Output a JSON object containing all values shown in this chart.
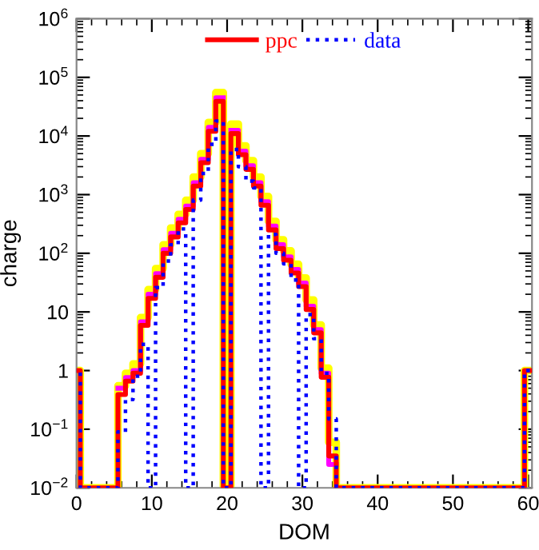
{
  "chart_data": {
    "type": "step",
    "xlabel": "DOM",
    "ylabel": "charge",
    "x": [
      0,
      1,
      2,
      3,
      4,
      5,
      6,
      7,
      8,
      9,
      10,
      11,
      12,
      13,
      14,
      15,
      16,
      17,
      18,
      19,
      20,
      21,
      22,
      23,
      24,
      25,
      26,
      27,
      28,
      29,
      30,
      31,
      32,
      33,
      34,
      35,
      36,
      37,
      38,
      39,
      40,
      41,
      42,
      43,
      44,
      45,
      46,
      47,
      48,
      49,
      50,
      51,
      52,
      53,
      54,
      55,
      56,
      57,
      58,
      59,
      60
    ],
    "series": [
      {
        "color": "#ffff00",
        "line_style": "solid",
        "values": [
          1,
          0.01,
          0.01,
          0.01,
          0.01,
          0.01,
          0.55,
          0.9,
          1.3,
          8,
          24,
          55,
          140,
          270,
          460,
          800,
          2000,
          5000,
          17000,
          55000,
          0.01,
          16000,
          6800,
          3800,
          2000,
          930,
          350,
          170,
          110,
          65,
          38,
          16,
          6,
          1.1,
          0.06,
          0.01,
          0.01,
          0.01,
          0.01,
          0.01,
          0.01,
          0.01,
          0.01,
          0.01,
          0.01,
          0.01,
          0.01,
          0.01,
          0.01,
          0.01,
          0.01,
          0.01,
          0.01,
          0.01,
          0.01,
          0.01,
          0.01,
          0.01,
          0.01,
          0.01,
          1
        ]
      },
      {
        "color": "#ff00ff",
        "line_style": "solid",
        "x": [
          6,
          7,
          8,
          9,
          10,
          11,
          12,
          13,
          14,
          15,
          16,
          17,
          18,
          19,
          20,
          21,
          22,
          23,
          24,
          25,
          26,
          27,
          28,
          29,
          30,
          31,
          32,
          33,
          34
        ],
        "values": [
          0.5,
          0.76,
          1.0,
          6.8,
          20,
          45,
          115,
          220,
          380,
          640,
          1600,
          4000,
          14000,
          45000,
          null,
          12500,
          5500,
          3100,
          1600,
          760,
          290,
          140,
          87,
          53,
          31,
          12.5,
          5,
          0.9,
          0.025
        ]
      },
      {
        "name": "ppc",
        "color": "#ff0000",
        "line_style": "solid",
        "values": [
          1,
          0.01,
          0.01,
          0.01,
          0.01,
          0.01,
          0.39,
          0.66,
          0.9,
          5.9,
          17,
          39,
          100,
          190,
          330,
          560,
          1400,
          3500,
          12000,
          39000,
          0.01,
          11000,
          4800,
          2700,
          1400,
          660,
          250,
          120,
          76,
          46,
          27,
          11,
          4.4,
          0.77,
          0.035,
          0.01,
          0.01,
          0.01,
          0.01,
          0.01,
          0.01,
          0.01,
          0.01,
          0.01,
          0.01,
          0.01,
          0.01,
          0.01,
          0.01,
          0.01,
          0.01,
          0.01,
          0.01,
          0.01,
          0.01,
          0.01,
          0.01,
          0.01,
          0.01,
          0.01,
          1
        ]
      },
      {
        "name": "data",
        "color": "#0000ff",
        "line_style": "dotted",
        "values": [
          1,
          0.01,
          0.01,
          0.01,
          0.01,
          0.01,
          0.09,
          0.32,
          0.8,
          2.8,
          0.01,
          26,
          74,
          140,
          260,
          0.01,
          810,
          2300,
          7200,
          18000,
          0.01,
          5900,
          3000,
          1700,
          1300,
          0.01,
          210,
          100,
          66,
          35,
          0.01,
          9,
          3.5,
          0.9,
          0.15,
          0.01,
          0.01,
          0.01,
          0.01,
          0.01,
          0.01,
          0.01,
          0.01,
          0.01,
          0.01,
          0.01,
          0.01,
          0.01,
          0.01,
          0.01,
          0.01,
          0.01,
          0.01,
          0.01,
          0.01,
          0.01,
          0.01,
          0.01,
          0.01,
          0.01,
          1
        ]
      }
    ],
    "xlim": [
      0,
      60.5
    ],
    "xticks": [
      0,
      10,
      20,
      30,
      40,
      50,
      60
    ],
    "log": "y",
    "ylim": [
      0.01,
      1000000
    ],
    "yticks": [
      {
        "value": 0.01,
        "label": "10$^{−2}$"
      },
      {
        "value": 0.1,
        "label": "10$^{−1}$"
      },
      1,
      10,
      {
        "value": 100,
        "label": "10$^{2}$"
      },
      {
        "value": 1000,
        "label": "10$^{3}$"
      },
      {
        "value": 10000,
        "label": "10$^{4}$"
      },
      {
        "value": 100000,
        "label": "10$^{5}$"
      },
      {
        "value": 1000000,
        "label": "10$^{6}$"
      }
    ],
    "legend": "top",
    "grid": false
  }
}
